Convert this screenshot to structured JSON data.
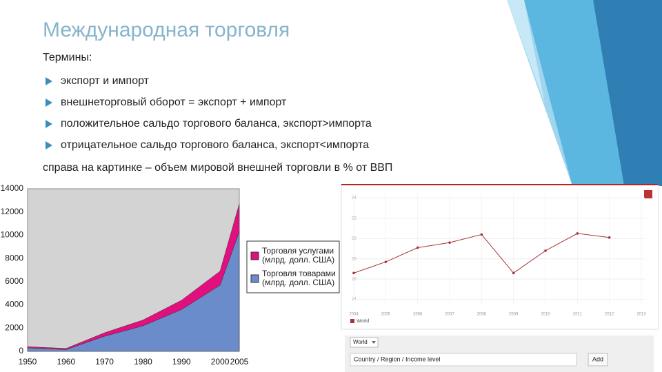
{
  "title": "Международная торговля",
  "subtitle": "Термины:",
  "bullets": [
    "экспорт и импорт",
    "внешнеторговый оборот = экспорт + импорт",
    "положительное сальдо торгового баланса, экспорт>импорта",
    "отрицательное сальдо торгового баланса, экспорт<импорта"
  ],
  "caption": "справа на картинке – объем мировой внешней торговли в % от ВВП",
  "chart_data": [
    {
      "type": "area",
      "x": [
        1950,
        1960,
        1970,
        1980,
        1990,
        2000,
        2005
      ],
      "series": [
        {
          "name": "Торговля товарами (млрд. долл. США)",
          "color": "#6b8cca",
          "values": [
            300,
            150,
            1300,
            2200,
            3600,
            5700,
            10300
          ]
        },
        {
          "name": "Торговля услугами (млрд. долл. США)",
          "color": "#e2107f",
          "values": [
            100,
            100,
            300,
            500,
            800,
            1200,
            2400
          ]
        }
      ],
      "xlim": [
        1950,
        2005
      ],
      "xticks": [
        1950,
        1960,
        1970,
        1980,
        1990,
        2000,
        2005
      ],
      "ylim": [
        0,
        14000
      ],
      "yticks": [
        0,
        2000,
        4000,
        6000,
        8000,
        10000,
        12000,
        14000
      ],
      "background": "#d3d3d3"
    },
    {
      "type": "line",
      "x": [
        2004,
        2005,
        2006,
        2007,
        2008,
        2009,
        2010,
        2011,
        2012
      ],
      "series": [
        {
          "name": "World",
          "color": "#a8343a",
          "values": [
            26.6,
            27.7,
            29.1,
            29.6,
            30.4,
            26.6,
            28.8,
            30.5,
            30.1
          ]
        }
      ],
      "xlim": [
        2004,
        2013
      ],
      "xticks": [
        2004,
        2005,
        2006,
        2007,
        2008,
        2009,
        2010,
        2011,
        2012,
        2013
      ],
      "ylim": [
        23.5,
        34.5
      ],
      "yticks": [
        24,
        26,
        28,
        30,
        32,
        34
      ],
      "grid": true
    }
  ],
  "panel": {
    "dropdown": "World",
    "field": "Country / Region / Income level",
    "button": "Add"
  }
}
